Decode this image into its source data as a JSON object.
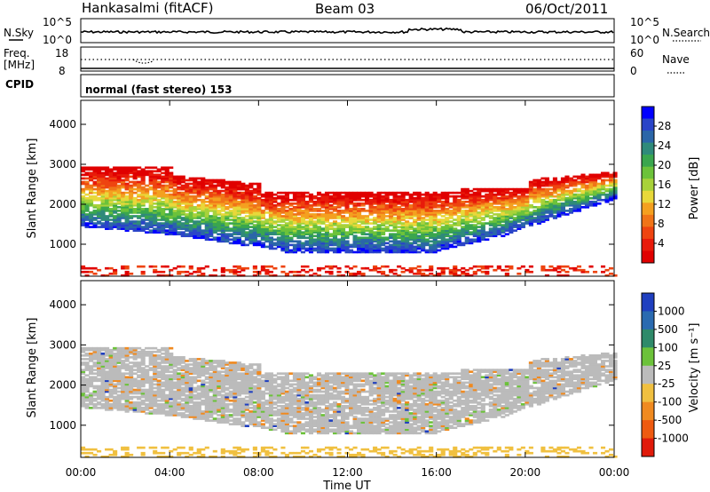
{
  "header": {
    "station": "Hankasalmi (fitACF)",
    "beam": "Beam 03",
    "date": "06/Oct/2011"
  },
  "top_panels": {
    "nsky_label": "N.Sky",
    "nsky_ticks": [
      "10^5",
      "10^0"
    ],
    "nsearch_label": "N.Search",
    "nsearch_ticks": [
      "10^5",
      "10^0"
    ],
    "freq_label": "Freq.",
    "freq_unit": "[MHz]",
    "freq_ticks": [
      "18",
      "8"
    ],
    "nave_label": "Nave",
    "nave_ticks": [
      "60",
      "0"
    ],
    "cpid_label": "CPID",
    "cpid_text": "normal (fast stereo) 153"
  },
  "chart_data": [
    {
      "type": "heatmap",
      "ylabel": "Slant Range [km]",
      "yticks": [
        "1000",
        "2000",
        "3000",
        "4000"
      ],
      "ylim": [
        200,
        4600
      ],
      "xlim": [
        0,
        24
      ],
      "colorbar_label": "Power [dB]",
      "colorbar_ticks": [
        "4",
        "8",
        "12",
        "16",
        "20",
        "24",
        "28"
      ],
      "colorbar_colors": [
        "#0000ff",
        "#2a44c8",
        "#2b66a8",
        "#2f8a7a",
        "#3aa64e",
        "#6cc23a",
        "#a8d23a",
        "#e8d83a",
        "#f4a020",
        "#f07418",
        "#ee4410",
        "#e81a0a",
        "#e00000"
      ]
    },
    {
      "type": "heatmap",
      "ylabel": "Slant Range [km]",
      "yticks": [
        "1000",
        "2000",
        "3000",
        "4000"
      ],
      "ylim": [
        200,
        4600
      ],
      "xlim": [
        0,
        24
      ],
      "xlabel": "Time UT",
      "xticks": [
        "00:00",
        "04:00",
        "08:00",
        "12:00",
        "16:00",
        "20:00",
        "00:00"
      ],
      "colorbar_label": "Velocity [m s⁻¹]",
      "colorbar_ticks": [
        "1000",
        "500",
        "100",
        "25",
        "-25",
        "-100",
        "-500",
        "-1000"
      ],
      "colorbar_colors": [
        "#1f3fbf",
        "#2a6ab0",
        "#2f8a6a",
        "#6cc23a",
        "#bbbbbb",
        "#f0c040",
        "#f08a20",
        "#ee5a10",
        "#e01a0a"
      ]
    }
  ]
}
